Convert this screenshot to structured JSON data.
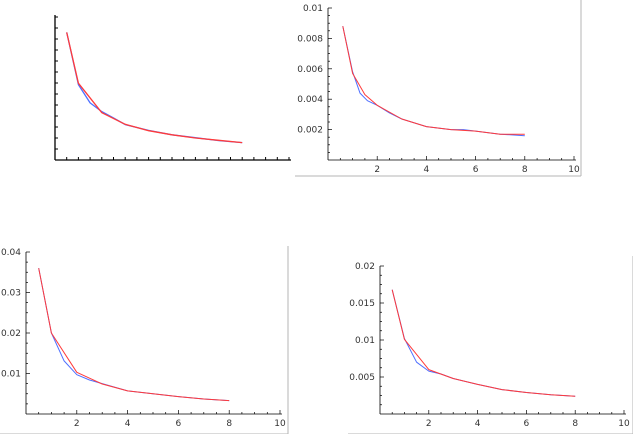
{
  "colors": {
    "axis": "#000000",
    "frame": "#b4b4b4",
    "blue": "#4f6fff",
    "red": "#ff3a3a"
  },
  "chart_data": [
    {
      "type": "line",
      "xlim": [
        0,
        10
      ],
      "ylim": [
        0,
        0.05
      ],
      "xticks": [],
      "yticks": [],
      "series": [
        {
          "color": "blue",
          "x": [
            0.5,
            1.0,
            1.5,
            2.0,
            2.5,
            3.0,
            4.0,
            5.0,
            6.0,
            7.0,
            8.0
          ],
          "y": [
            0.044,
            0.026,
            0.0197,
            0.0167,
            0.0145,
            0.0122,
            0.0102,
            0.0087,
            0.0077,
            0.0067,
            0.006
          ]
        },
        {
          "color": "red",
          "x": [
            0.5,
            1.0,
            2.0,
            3.0,
            4.0,
            5.0,
            6.0,
            7.0,
            8.0
          ],
          "y": [
            0.044,
            0.0265,
            0.0163,
            0.0123,
            0.0101,
            0.0087,
            0.0076,
            0.0068,
            0.006
          ]
        }
      ]
    },
    {
      "type": "line",
      "xlim": [
        0,
        10
      ],
      "ylim": [
        0,
        0.01
      ],
      "xticks": [
        "2",
        "4",
        "6",
        "8",
        "10"
      ],
      "yticks": [
        "0.002",
        "0.004",
        "0.006",
        "0.008",
        "0.01"
      ],
      "series": [
        {
          "color": "blue",
          "x": [
            0.6,
            1.0,
            1.3,
            1.6,
            2.0,
            2.5,
            3.0,
            4.0,
            5.0,
            5.5,
            6.0,
            7.0,
            8.0
          ],
          "y": [
            0.0088,
            0.0058,
            0.0044,
            0.0039,
            0.0036,
            0.0031,
            0.0027,
            0.0022,
            0.002,
            0.002,
            0.0019,
            0.0017,
            0.0016
          ]
        },
        {
          "color": "red",
          "x": [
            0.6,
            1.0,
            1.5,
            2.0,
            3.0,
            4.0,
            5.0,
            6.0,
            7.0,
            8.0
          ],
          "y": [
            0.0088,
            0.0057,
            0.0043,
            0.0036,
            0.0027,
            0.0022,
            0.002,
            0.0019,
            0.0017,
            0.0017
          ]
        }
      ]
    },
    {
      "type": "line",
      "xlim": [
        0,
        10
      ],
      "ylim": [
        0,
        0.04
      ],
      "xticks": [
        "2",
        "4",
        "6",
        "8",
        "10"
      ],
      "yticks": [
        "0.01",
        "0.02",
        "0.03",
        "0.04"
      ],
      "series": [
        {
          "color": "blue",
          "x": [
            0.5,
            1.0,
            1.5,
            2.0,
            2.5,
            3.0,
            4.0,
            5.0,
            6.0,
            7.0,
            8.0
          ],
          "y": [
            0.036,
            0.02,
            0.0131,
            0.0097,
            0.0084,
            0.0075,
            0.0057,
            0.005,
            0.0043,
            0.0037,
            0.0033
          ]
        },
        {
          "color": "red",
          "x": [
            0.5,
            1.0,
            2.0,
            3.0,
            4.0,
            5.0,
            6.0,
            7.0,
            8.0
          ],
          "y": [
            0.036,
            0.02,
            0.0103,
            0.0074,
            0.0057,
            0.005,
            0.0043,
            0.0037,
            0.0033
          ]
        }
      ]
    },
    {
      "type": "line",
      "xlim": [
        0,
        10
      ],
      "ylim": [
        0,
        0.02
      ],
      "xticks": [
        "2",
        "4",
        "6",
        "8",
        "10"
      ],
      "yticks": [
        "0.005",
        "0.01",
        "0.015",
        "0.02"
      ],
      "series": [
        {
          "color": "blue",
          "x": [
            0.5,
            1.0,
            1.5,
            2.0,
            2.5,
            3.0,
            4.0,
            5.0,
            6.0,
            7.0,
            8.0
          ],
          "y": [
            0.0168,
            0.0102,
            0.007,
            0.0058,
            0.0054,
            0.0048,
            0.004,
            0.0033,
            0.0029,
            0.0026,
            0.0024
          ]
        },
        {
          "color": "red",
          "x": [
            0.5,
            1.0,
            2.0,
            3.0,
            4.0,
            5.0,
            6.0,
            7.0,
            8.0
          ],
          "y": [
            0.0168,
            0.0101,
            0.006,
            0.0048,
            0.004,
            0.0033,
            0.0029,
            0.0026,
            0.0024
          ]
        }
      ]
    }
  ]
}
